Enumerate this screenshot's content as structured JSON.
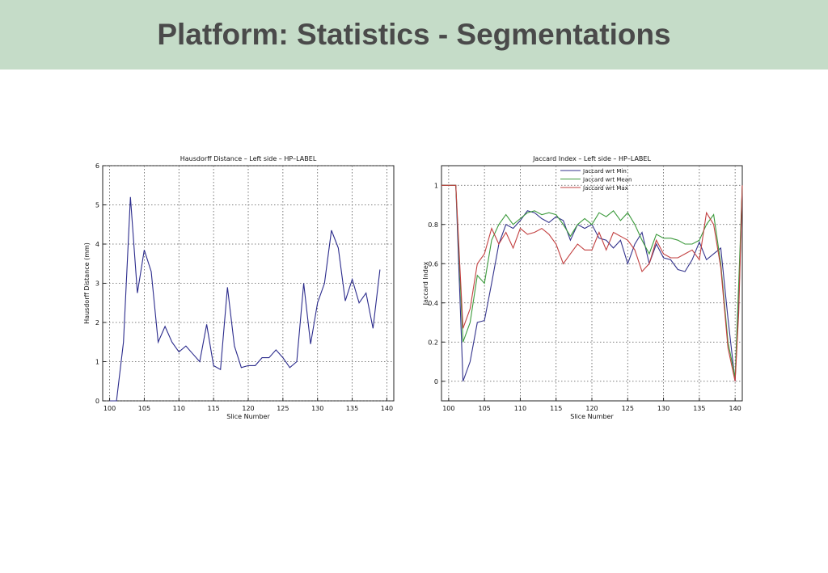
{
  "slide": {
    "title": "Platform: Statistics - Segmentations",
    "colors": {
      "banner": "#c5dcc8",
      "title_text": "#4a4a4a"
    }
  },
  "chart_data": [
    {
      "type": "line",
      "title": "Hausdorff Distance – Left side – HP–LABEL",
      "xlabel": "Slice Number",
      "ylabel": "Hausdorff Distance (mm)",
      "xlim": [
        99,
        141
      ],
      "ylim": [
        0,
        6
      ],
      "xticks": [
        100,
        105,
        110,
        115,
        120,
        125,
        130,
        135,
        140
      ],
      "yticks": [
        0,
        1,
        2,
        3,
        4,
        5,
        6
      ],
      "grid": true,
      "legend": null,
      "series": [
        {
          "color": "#2b2b8c",
          "x": [
            100,
            101,
            102,
            103,
            104,
            105,
            106,
            107,
            108,
            109,
            110,
            111,
            112,
            113,
            114,
            115,
            116,
            117,
            118,
            119,
            120,
            121,
            122,
            123,
            124,
            125,
            126,
            127,
            128,
            129,
            130,
            131,
            132,
            133,
            134,
            135,
            136,
            137,
            138,
            139
          ],
          "y": [
            0,
            0,
            1.5,
            5.2,
            2.75,
            3.85,
            3.3,
            1.5,
            1.9,
            1.5,
            1.25,
            1.4,
            1.2,
            1.0,
            1.95,
            0.9,
            0.8,
            2.9,
            1.4,
            0.85,
            0.9,
            0.9,
            1.1,
            1.1,
            1.3,
            1.1,
            0.85,
            1.0,
            3.0,
            1.45,
            2.5,
            3.0,
            4.35,
            3.9,
            2.55,
            3.1,
            2.5,
            2.75,
            1.85,
            3.35
          ]
        }
      ]
    },
    {
      "type": "line",
      "title": "Jaccard Index – Left side – HP–LABEL",
      "xlabel": "Slice Number",
      "ylabel": "Jaccard Index",
      "xlim": [
        99,
        141
      ],
      "ylim": [
        -0.1,
        1.1
      ],
      "xticks": [
        100,
        105,
        110,
        115,
        120,
        125,
        130,
        135,
        140
      ],
      "yticks": [
        0,
        0.2,
        0.4,
        0.6,
        0.8,
        1
      ],
      "grid": true,
      "legend": "top",
      "series": [
        {
          "name": "Jaccard wrt Min",
          "color": "#33338c",
          "x": [
            99,
            100,
            101,
            102,
            103,
            104,
            105,
            106,
            107,
            108,
            109,
            110,
            111,
            112,
            113,
            114,
            115,
            116,
            117,
            118,
            119,
            120,
            121,
            122,
            123,
            124,
            125,
            126,
            127,
            128,
            129,
            130,
            131,
            132,
            133,
            134,
            135,
            136,
            137,
            138,
            139,
            140,
            140.5,
            141
          ],
          "y": [
            1,
            1,
            1,
            0,
            0.1,
            0.3,
            0.31,
            0.5,
            0.7,
            0.8,
            0.78,
            0.82,
            0.87,
            0.86,
            0.83,
            0.81,
            0.84,
            0.82,
            0.72,
            0.8,
            0.78,
            0.8,
            0.73,
            0.72,
            0.68,
            0.72,
            0.6,
            0.7,
            0.76,
            0.6,
            0.7,
            0.63,
            0.62,
            0.57,
            0.56,
            0.62,
            0.71,
            0.62,
            0.65,
            0.68,
            0.32,
            0,
            0.4,
            1
          ]
        },
        {
          "name": "Jaccard wrt Mean",
          "color": "#3c9a3c",
          "x": [
            99,
            100,
            101,
            102,
            103,
            104,
            105,
            106,
            107,
            108,
            109,
            110,
            111,
            112,
            113,
            114,
            115,
            116,
            117,
            118,
            119,
            120,
            121,
            122,
            123,
            124,
            125,
            126,
            127,
            128,
            129,
            130,
            131,
            132,
            133,
            134,
            135,
            136,
            137,
            138,
            139,
            140,
            140.5,
            141
          ],
          "y": [
            1,
            1,
            1,
            0.2,
            0.3,
            0.54,
            0.5,
            0.72,
            0.8,
            0.85,
            0.8,
            0.83,
            0.86,
            0.87,
            0.85,
            0.86,
            0.85,
            0.8,
            0.74,
            0.8,
            0.83,
            0.8,
            0.86,
            0.84,
            0.87,
            0.82,
            0.86,
            0.8,
            0.72,
            0.65,
            0.75,
            0.73,
            0.73,
            0.72,
            0.7,
            0.7,
            0.72,
            0.8,
            0.85,
            0.6,
            0.2,
            0.02,
            0.5,
            1
          ]
        },
        {
          "name": "Jaccard wrt Max",
          "color": "#c24040",
          "x": [
            99,
            100,
            101,
            102,
            103,
            104,
            105,
            106,
            107,
            108,
            109,
            110,
            111,
            112,
            113,
            114,
            115,
            116,
            117,
            118,
            119,
            120,
            121,
            122,
            123,
            124,
            125,
            126,
            127,
            128,
            129,
            130,
            131,
            132,
            133,
            134,
            135,
            136,
            137,
            138,
            139,
            140,
            140.5,
            141
          ],
          "y": [
            1,
            1,
            1,
            0.27,
            0.37,
            0.6,
            0.65,
            0.78,
            0.7,
            0.76,
            0.68,
            0.78,
            0.75,
            0.76,
            0.78,
            0.75,
            0.7,
            0.6,
            0.65,
            0.7,
            0.67,
            0.67,
            0.76,
            0.67,
            0.76,
            0.74,
            0.72,
            0.67,
            0.56,
            0.6,
            0.72,
            0.65,
            0.63,
            0.63,
            0.65,
            0.67,
            0.62,
            0.86,
            0.8,
            0.58,
            0.17,
            0,
            0.35,
            1
          ]
        }
      ]
    }
  ]
}
